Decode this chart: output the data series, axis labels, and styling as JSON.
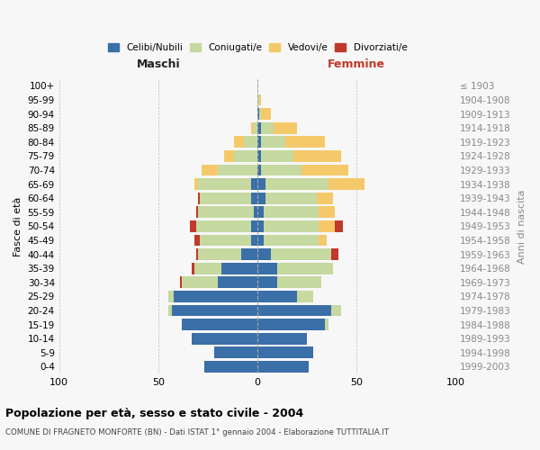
{
  "age_groups": [
    "0-4",
    "5-9",
    "10-14",
    "15-19",
    "20-24",
    "25-29",
    "30-34",
    "35-39",
    "40-44",
    "45-49",
    "50-54",
    "55-59",
    "60-64",
    "65-69",
    "70-74",
    "75-79",
    "80-84",
    "85-89",
    "90-94",
    "95-99",
    "100+"
  ],
  "birth_years": [
    "1999-2003",
    "1994-1998",
    "1989-1993",
    "1984-1988",
    "1979-1983",
    "1974-1978",
    "1969-1973",
    "1964-1968",
    "1959-1963",
    "1954-1958",
    "1949-1953",
    "1944-1948",
    "1939-1943",
    "1934-1938",
    "1929-1933",
    "1924-1928",
    "1919-1923",
    "1914-1918",
    "1909-1913",
    "1904-1908",
    "≤ 1903"
  ],
  "males": {
    "celibi": [
      27,
      22,
      33,
      38,
      43,
      42,
      20,
      18,
      8,
      3,
      3,
      2,
      3,
      3,
      0,
      0,
      0,
      0,
      0,
      0,
      0
    ],
    "coniugati": [
      0,
      0,
      0,
      0,
      2,
      3,
      18,
      14,
      22,
      26,
      28,
      28,
      26,
      27,
      20,
      12,
      7,
      2,
      0,
      0,
      0
    ],
    "vedovi": [
      0,
      0,
      0,
      0,
      0,
      0,
      0,
      0,
      0,
      0,
      0,
      0,
      0,
      2,
      8,
      5,
      5,
      1,
      0,
      0,
      0
    ],
    "divorziati": [
      0,
      0,
      0,
      0,
      0,
      0,
      1,
      1,
      1,
      3,
      3,
      1,
      1,
      0,
      0,
      0,
      0,
      0,
      0,
      0,
      0
    ]
  },
  "females": {
    "nubili": [
      26,
      28,
      25,
      34,
      37,
      20,
      10,
      10,
      7,
      3,
      3,
      3,
      4,
      4,
      2,
      2,
      2,
      2,
      1,
      0,
      0
    ],
    "coniugate": [
      0,
      0,
      0,
      2,
      5,
      8,
      22,
      28,
      30,
      28,
      28,
      28,
      26,
      32,
      20,
      16,
      12,
      6,
      1,
      1,
      0
    ],
    "vedove": [
      0,
      0,
      0,
      0,
      0,
      0,
      0,
      0,
      0,
      4,
      8,
      8,
      8,
      18,
      24,
      24,
      20,
      12,
      5,
      1,
      0
    ],
    "divorziate": [
      0,
      0,
      0,
      0,
      0,
      0,
      0,
      0,
      4,
      0,
      4,
      0,
      0,
      0,
      0,
      0,
      0,
      0,
      0,
      0,
      0
    ]
  },
  "colors": {
    "celibi": "#3a6fa8",
    "coniugati": "#c5d9a0",
    "vedovi": "#f5c96a",
    "divorziati": "#c0392b"
  },
  "title": "Popolazione per età, sesso e stato civile - 2004",
  "subtitle": "COMUNE DI FRAGNETO MONFORTE (BN) - Dati ISTAT 1° gennaio 2004 - Elaborazione TUTTITALIA.IT",
  "ylabel_left": "Fasce di età",
  "ylabel_right": "Anni di nascita",
  "xlabel_left": "Maschi",
  "xlabel_right": "Femmine",
  "xlim": 100,
  "legend_labels": [
    "Celibi/Nubili",
    "Coniugati/e",
    "Vedovi/e",
    "Divorziati/e"
  ],
  "bg_color": "#f7f7f7"
}
